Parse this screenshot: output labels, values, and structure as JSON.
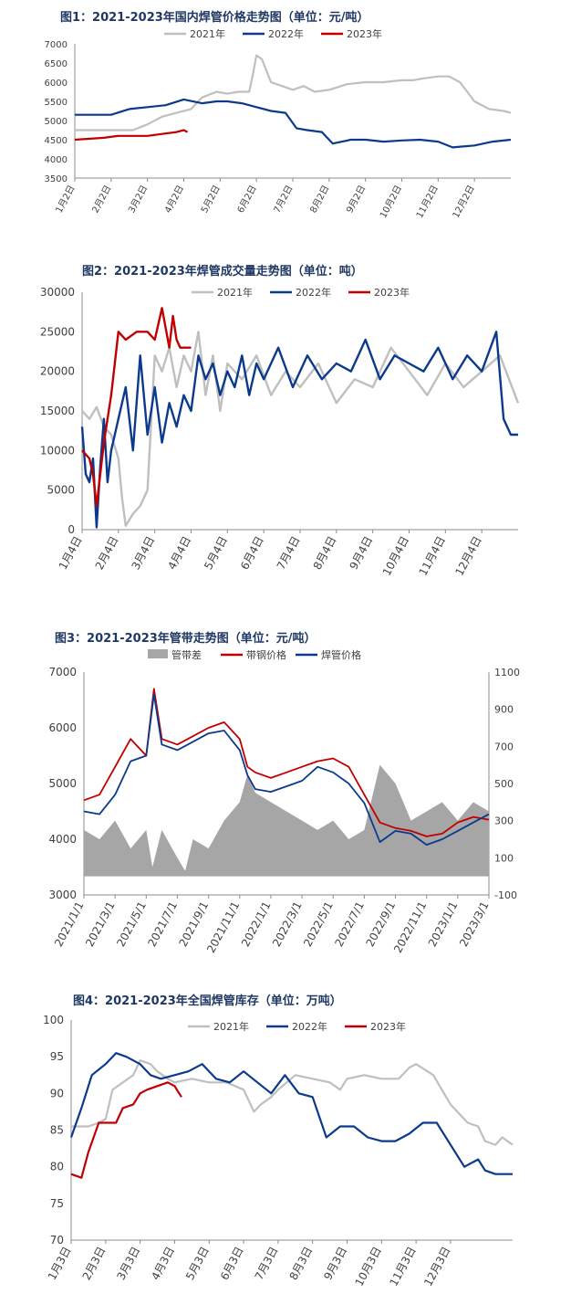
{
  "charts": [
    {
      "title": "图1：2021-2023年国内焊管价格走势图（单位：元/吨）",
      "legend": [
        "2021年",
        "2022年",
        "2023年"
      ]
    },
    {
      "title": "图2：2021-2023年焊管成交量走势图（单位：吨）",
      "legend": [
        "2021年",
        "2022年",
        "2023年"
      ]
    },
    {
      "title": "图3：2021-2023年管带走势图（单位：元/吨）",
      "legend": [
        "管带差",
        "带钢价格",
        "焊管价格"
      ]
    },
    {
      "title": "图4：2021-2023年全国焊管库存（单位：万吨）",
      "legend": [
        "2021年",
        "2022年",
        "2023年"
      ]
    }
  ],
  "colors": {
    "c2021": "#bfbfbf",
    "c2022": "#0b3a8c",
    "c2023": "#c00000",
    "gap": "#a6a6a6",
    "title": "#1f3864"
  },
  "chart_data": [
    {
      "type": "line",
      "title": "图1：2021-2023年国内焊管价格走势图（单位：元/吨）",
      "x": [
        0,
        1,
        2,
        3,
        4,
        5,
        6,
        7,
        8,
        9,
        10,
        11,
        12
      ],
      "tick_labels": [
        "1月2日",
        "2月2日",
        "3月2日",
        "4月2日",
        "5月2日",
        "6月2日",
        "7月2日",
        "8月2日",
        "9月2日",
        "10月2日",
        "11月2日",
        "12月2日"
      ],
      "ylim": [
        3500,
        7000
      ],
      "yticks": [
        3500,
        4000,
        4500,
        5000,
        5500,
        6000,
        6500,
        7000
      ],
      "series": [
        {
          "name": "2021年",
          "x": [
            0,
            1.6,
            2.0,
            2.4,
            2.8,
            3.2,
            3.5,
            3.9,
            4.2,
            4.5,
            4.8,
            4.9,
            5.0,
            5.15,
            5.4,
            5.7,
            6.0,
            6.3,
            6.6,
            7.0,
            7.5,
            8.0,
            8.5,
            9.0,
            9.3,
            9.6,
            10.0,
            10.3,
            10.6,
            11.0,
            11.4,
            11.8,
            12.0
          ],
          "values": [
            4750,
            4750,
            4900,
            5100,
            5200,
            5300,
            5600,
            5750,
            5700,
            5750,
            5750,
            6200,
            6700,
            6600,
            6000,
            5900,
            5800,
            5900,
            5750,
            5800,
            5950,
            6000,
            6000,
            6050,
            6050,
            6100,
            6150,
            6150,
            6000,
            5500,
            5300,
            5250,
            5200
          ]
        },
        {
          "name": "2022年",
          "x": [
            0,
            1.0,
            1.5,
            2.0,
            2.5,
            3.0,
            3.5,
            3.9,
            4.2,
            4.6,
            5.0,
            5.4,
            5.8,
            6.1,
            6.4,
            6.8,
            7.1,
            7.6,
            8.0,
            8.5,
            9.0,
            9.5,
            10.0,
            10.4,
            11.0,
            11.5,
            12.0
          ],
          "values": [
            5150,
            5150,
            5300,
            5350,
            5400,
            5550,
            5450,
            5500,
            5500,
            5450,
            5350,
            5250,
            5200,
            4800,
            4750,
            4700,
            4400,
            4500,
            4500,
            4450,
            4480,
            4500,
            4450,
            4300,
            4350,
            4450,
            4500
          ]
        },
        {
          "name": "2023年",
          "x": [
            0,
            0.8,
            1.2,
            2.0,
            2.4,
            2.8,
            3.0,
            3.1
          ],
          "values": [
            4500,
            4550,
            4600,
            4600,
            4650,
            4700,
            4750,
            4700
          ]
        }
      ]
    },
    {
      "type": "line",
      "title": "图2：2021-2023年焊管成交量走势图（单位：吨）",
      "x": [
        0,
        1,
        2,
        3,
        4,
        5,
        6,
        7,
        8,
        9,
        10,
        11,
        12
      ],
      "tick_labels": [
        "1月4日",
        "2月4日",
        "3月4日",
        "4月4日",
        "5月4日",
        "6月4日",
        "7月4日",
        "8月4日",
        "9月4日",
        "10月4日",
        "11月4日",
        "12月4日"
      ],
      "ylim": [
        0,
        30000
      ],
      "yticks": [
        0,
        5000,
        10000,
        15000,
        20000,
        25000,
        30000
      ],
      "series": [
        {
          "name": "2021年",
          "x": [
            0,
            0.2,
            0.4,
            0.6,
            0.8,
            1.0,
            1.1,
            1.2,
            1.4,
            1.6,
            1.8,
            2.0,
            2.2,
            2.4,
            2.6,
            2.8,
            3.0,
            3.2,
            3.4,
            3.6,
            3.8,
            4.0,
            4.4,
            4.8,
            5.2,
            5.6,
            6.0,
            6.5,
            7.0,
            7.5,
            8.0,
            8.5,
            9.0,
            9.5,
            10.0,
            10.5,
            11.0,
            11.5,
            12.0
          ],
          "values": [
            15000,
            14000,
            15500,
            13000,
            12000,
            9000,
            4000,
            500,
            2000,
            3000,
            5000,
            22000,
            20000,
            23000,
            18000,
            22000,
            20000,
            25000,
            17000,
            22000,
            15000,
            21000,
            19000,
            22000,
            17000,
            20000,
            18000,
            21000,
            16000,
            19000,
            18000,
            23000,
            20000,
            17000,
            21000,
            18000,
            20000,
            22000,
            16000
          ]
        },
        {
          "name": "2022年",
          "x": [
            0,
            0.1,
            0.2,
            0.3,
            0.4,
            0.5,
            0.6,
            0.7,
            0.8,
            1.0,
            1.2,
            1.4,
            1.6,
            1.8,
            2.0,
            2.2,
            2.4,
            2.6,
            2.8,
            3.0,
            3.2,
            3.4,
            3.6,
            3.8,
            4.0,
            4.2,
            4.4,
            4.6,
            4.8,
            5.0,
            5.4,
            5.8,
            6.2,
            6.6,
            7.0,
            7.4,
            7.8,
            8.2,
            8.6,
            9.0,
            9.4,
            9.8,
            10.2,
            10.6,
            11.0,
            11.4,
            11.6,
            11.8,
            12.0
          ],
          "values": [
            13000,
            7000,
            6000,
            9000,
            300,
            8000,
            14000,
            6000,
            10000,
            14000,
            18000,
            10000,
            22000,
            12000,
            18000,
            11000,
            16000,
            13000,
            17000,
            15000,
            22000,
            19000,
            21000,
            17000,
            20000,
            18000,
            22000,
            17000,
            21000,
            19000,
            23000,
            18000,
            22000,
            19000,
            21000,
            20000,
            24000,
            19000,
            22000,
            21000,
            20000,
            23000,
            19000,
            22000,
            20000,
            25000,
            14000,
            12000,
            12000
          ]
        },
        {
          "name": "2023年",
          "x": [
            0,
            0.2,
            0.3,
            0.4,
            0.6,
            0.8,
            1.0,
            1.2,
            1.5,
            1.8,
            2.0,
            2.2,
            2.4,
            2.5,
            2.6,
            2.7,
            2.8,
            3.0
          ],
          "values": [
            10000,
            9000,
            7000,
            3000,
            11000,
            17000,
            25000,
            24000,
            25000,
            25000,
            24000,
            28000,
            23000,
            27000,
            24000,
            23000,
            23000,
            23000
          ]
        }
      ]
    },
    {
      "type": "line",
      "title": "图3：2021-2023年管带走势图（单位：元/吨）",
      "x": [
        0,
        2,
        4,
        6,
        8,
        10,
        12,
        14,
        16,
        18,
        20,
        22,
        24,
        26
      ],
      "tick_labels": [
        "2021/1/1",
        "2021/3/1",
        "2021/5/1",
        "2021/7/1",
        "2021/9/1",
        "2021/11/1",
        "2022/1/1",
        "2022/3/1",
        "2022/5/1",
        "2022/7/1",
        "2022/9/1",
        "2022/11/1",
        "2023/1/1",
        "2023/3/1"
      ],
      "ylim": [
        3000,
        7000
      ],
      "yticks": [
        3000,
        4000,
        5000,
        6000,
        7000
      ],
      "y2lim": [
        -100,
        1100
      ],
      "y2ticks": [
        -100,
        100,
        300,
        500,
        700,
        900,
        1100
      ],
      "series": [
        {
          "name": "管带差",
          "axis": "right",
          "x": [
            0,
            1,
            2,
            3,
            4,
            4.4,
            5,
            6,
            6.5,
            7,
            8,
            9,
            10,
            10.5,
            11,
            12,
            13,
            14,
            15,
            16,
            17,
            18,
            19,
            20,
            21,
            22,
            23,
            24,
            25,
            26
          ],
          "values": [
            250,
            200,
            300,
            150,
            250,
            50,
            250,
            100,
            30,
            200,
            150,
            300,
            400,
            550,
            450,
            400,
            350,
            300,
            250,
            300,
            200,
            250,
            600,
            500,
            300,
            350,
            400,
            300,
            400,
            350
          ]
        },
        {
          "name": "带钢价格",
          "axis": "left",
          "x": [
            0,
            1,
            2,
            3,
            4,
            4.5,
            5,
            6,
            7,
            8,
            9,
            10,
            10.5,
            11,
            12,
            13,
            14,
            15,
            16,
            17,
            18,
            19,
            20,
            21,
            22,
            23,
            24,
            25,
            26
          ],
          "values": [
            4700,
            4800,
            5300,
            5800,
            5500,
            6700,
            5800,
            5700,
            5850,
            6000,
            6100,
            5800,
            5300,
            5200,
            5100,
            5200,
            5300,
            5400,
            5450,
            5300,
            4800,
            4300,
            4200,
            4150,
            4050,
            4100,
            4300,
            4400,
            4350
          ]
        },
        {
          "name": "焊管价格",
          "axis": "left",
          "x": [
            0,
            1,
            2,
            3,
            4,
            4.5,
            5,
            6,
            7,
            8,
            9,
            10,
            10.5,
            11,
            12,
            13,
            14,
            15,
            16,
            17,
            18,
            19,
            20,
            21,
            22,
            23,
            24,
            25,
            26
          ],
          "values": [
            4500,
            4450,
            4800,
            5400,
            5500,
            6600,
            5700,
            5600,
            5750,
            5900,
            5950,
            5600,
            5150,
            4900,
            4850,
            4950,
            5050,
            5300,
            5200,
            5000,
            4650,
            3950,
            4150,
            4100,
            3900,
            4000,
            4150,
            4300,
            4450
          ]
        }
      ]
    },
    {
      "type": "line",
      "title": "图4：2021-2023年全国焊管库存（单位：万吨）",
      "x": [
        0,
        1,
        2,
        3,
        4,
        5,
        6,
        7,
        8,
        9,
        10,
        11,
        12
      ],
      "tick_labels": [
        "1月3日",
        "2月3日",
        "3月3日",
        "4月3日",
        "5月3日",
        "6月3日",
        "7月3日",
        "8月3日",
        "9月3日",
        "10月3日",
        "11月3日",
        "12月3日"
      ],
      "ylim": [
        70,
        100
      ],
      "yticks": [
        70,
        75,
        80,
        85,
        90,
        95,
        100
      ],
      "series": [
        {
          "name": "2021年",
          "x": [
            0,
            0.5,
            0.8,
            1.0,
            1.2,
            1.5,
            1.8,
            2.0,
            2.3,
            2.5,
            2.8,
            3.0,
            3.5,
            4.0,
            4.5,
            5.0,
            5.3,
            5.5,
            5.8,
            6.0,
            6.5,
            7.0,
            7.5,
            7.8,
            8.0,
            8.5,
            9.0,
            9.5,
            9.8,
            10.0,
            10.5,
            11.0,
            11.5,
            11.8,
            12.0,
            12.3,
            12.5,
            12.8
          ],
          "values": [
            85.5,
            85.5,
            86,
            86.5,
            90.5,
            91.5,
            92.5,
            94.5,
            94,
            93,
            92,
            91.5,
            92,
            91.5,
            91.5,
            90.5,
            87.5,
            88.5,
            89.5,
            90.5,
            92.5,
            92,
            91.5,
            90.5,
            92,
            92.5,
            92,
            92,
            93.5,
            94,
            92.5,
            88.5,
            86,
            85.5,
            83.5,
            83,
            84,
            83
          ]
        },
        {
          "name": "2022年",
          "x": [
            0,
            0.3,
            0.6,
            1.0,
            1.3,
            1.6,
            2.0,
            2.3,
            2.6,
            3.0,
            3.4,
            3.8,
            4.2,
            4.6,
            5.0,
            5.4,
            5.8,
            6.2,
            6.6,
            7.0,
            7.4,
            7.8,
            8.2,
            8.6,
            9.0,
            9.4,
            9.8,
            10.2,
            10.6,
            11.0,
            11.4,
            11.8,
            12.0,
            12.3,
            12.6,
            12.8
          ],
          "values": [
            84,
            88,
            92.5,
            94,
            95.5,
            95,
            94,
            92.5,
            92,
            92.5,
            93,
            94,
            92,
            91.5,
            93,
            91.5,
            90,
            92.5,
            90,
            89.5,
            84,
            85.5,
            85.5,
            84,
            83.5,
            83.5,
            84.5,
            86,
            86,
            83,
            80,
            81,
            79.5,
            79,
            79,
            79
          ]
        },
        {
          "name": "2023年",
          "x": [
            0,
            0.3,
            0.5,
            0.8,
            1.0,
            1.3,
            1.5,
            1.8,
            2.0,
            2.2,
            2.5,
            2.8,
            3.0,
            3.2
          ],
          "values": [
            79,
            78.5,
            82,
            86,
            86,
            86,
            88,
            88.5,
            90,
            90.5,
            91,
            91.5,
            91,
            89.5
          ]
        }
      ]
    }
  ]
}
